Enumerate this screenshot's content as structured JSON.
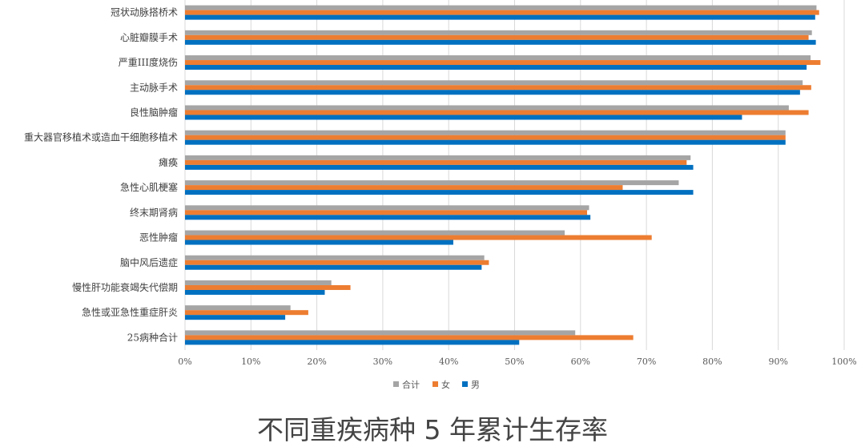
{
  "chart_data": {
    "type": "bar",
    "orientation": "horizontal",
    "title": "不同重疾病种 5 年累计生存率",
    "xlabel": "",
    "ylabel": "",
    "xlim": [
      0,
      100
    ],
    "x_ticks": [
      "0%",
      "10%",
      "20%",
      "30%",
      "40%",
      "50%",
      "60%",
      "70%",
      "80%",
      "90%",
      "100%"
    ],
    "grid": true,
    "legend": "bottom",
    "categories": [
      "冠状动脉搭桥术",
      "心脏瓣膜手术",
      "严重III度烧伤",
      "主动脉手术",
      "良性脑肿瘤",
      "重大器官移植术或造血干细胞移植术",
      "瘫痪",
      "急性心肌梗塞",
      "终末期肾病",
      "恶性肿瘤",
      "脑中风后遗症",
      "慢性肝功能衰竭失代偿期",
      "急性或亚急性重症肝炎",
      "25病种合计"
    ],
    "series": [
      {
        "name": "合计",
        "color": "#a5a5a5",
        "values": [
          95.8,
          95.1,
          94.9,
          93.7,
          91.6,
          91.1,
          76.7,
          74.9,
          61.3,
          57.6,
          45.4,
          22.2,
          16.0,
          59.2
        ]
      },
      {
        "name": "女",
        "color": "#ed7d31",
        "values": [
          96.2,
          94.6,
          96.4,
          95.0,
          94.6,
          91.1,
          76.1,
          66.4,
          61.0,
          70.8,
          46.1,
          25.1,
          18.7,
          68.0
        ]
      },
      {
        "name": "男",
        "color": "#0070c0",
        "values": [
          95.6,
          95.7,
          94.3,
          93.3,
          84.5,
          91.1,
          77.1,
          77.1,
          61.5,
          40.7,
          45.0,
          21.2,
          15.2,
          50.7
        ]
      }
    ]
  }
}
